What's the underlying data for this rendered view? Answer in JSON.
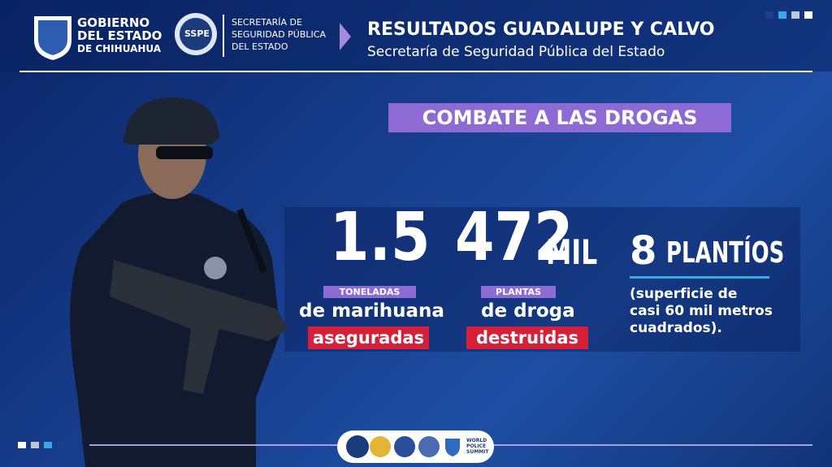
{
  "header": {
    "government_logo": [
      "GOBIERNO",
      "DEL ESTADO",
      "DE CHIHUAHUA"
    ],
    "sspe_badge": "SSPE",
    "secretaria_logo": [
      "SECRETARÍA DE",
      "SEGURIDAD PÚBLICA",
      "DEL ESTADO"
    ],
    "title": "RESULTADOS GUADALUPE Y CALVO",
    "subtitle": "Secretaría de Seguridad Pública del Estado"
  },
  "banner": "COMBATE A LAS DROGAS",
  "stats": [
    {
      "value": 1.5,
      "tag": "TONELADAS",
      "line1": "de marihuana",
      "line2": "aseguradas"
    },
    {
      "value": 472,
      "unit": "MIL",
      "tag": "PLANTAS",
      "line1": "de droga",
      "line2": "destruidas"
    },
    {
      "value": 8,
      "unit": "PLANTÍOS",
      "description": [
        "(superficie de",
        "casi 60 mil metros",
        "cuadrados)."
      ]
    }
  ],
  "footer": {
    "summit_logo": [
      "WORLD",
      "POLICE",
      "SUMMIT"
    ]
  }
}
